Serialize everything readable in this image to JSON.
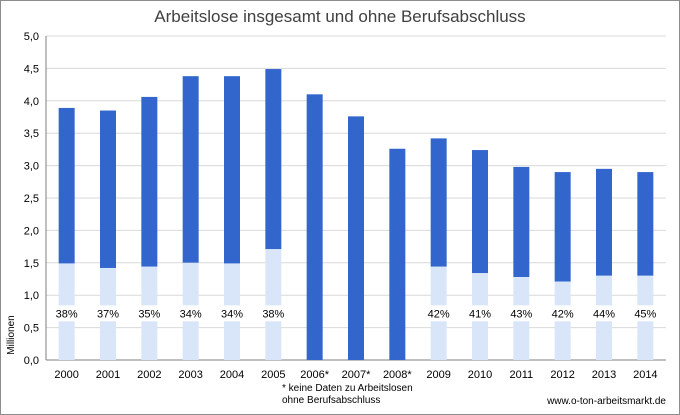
{
  "chart_data": {
    "type": "bar",
    "title": "Arbeitslose insgesamt und ohne Berufsabschluss",
    "ylabel": "Millionen",
    "xlabel": "",
    "ylim": [
      0,
      5
    ],
    "yticks": [
      "0,0",
      "0,5",
      "1,0",
      "1,5",
      "2,0",
      "2,5",
      "3,0",
      "3,5",
      "4,0",
      "4,5",
      "5,0"
    ],
    "categories": [
      "2000",
      "2001",
      "2002",
      "2003",
      "2004",
      "2005",
      "2006*",
      "2007*",
      "2008*",
      "2009",
      "2010",
      "2011",
      "2012",
      "2013",
      "2014"
    ],
    "series": [
      {
        "values": [
          1.49,
          1.42,
          1.44,
          1.5,
          1.49,
          1.71,
          null,
          null,
          null,
          1.44,
          1.34,
          1.28,
          1.21,
          1.3,
          1.3
        ]
      },
      {
        "values": [
          3.89,
          3.85,
          4.06,
          4.38,
          4.38,
          4.49,
          4.1,
          3.76,
          3.26,
          3.42,
          3.24,
          2.98,
          2.9,
          2.95,
          2.9
        ]
      }
    ],
    "data_labels": [
      "38%",
      "37%",
      "35%",
      "34%",
      "34%",
      "38%",
      "",
      "",
      "",
      "42%",
      "41%",
      "43%",
      "42%",
      "44%",
      "45%"
    ],
    "grid": true,
    "legend": "none",
    "colors": {
      "total": "#3366cc",
      "without_qualification": "#d9e6fa",
      "grid": "#d9d9d9",
      "axis": "#7f7f7f"
    }
  },
  "footnote": [
    "* keine Daten zu Arbeitslosen",
    "ohne Berufsabschluss"
  ],
  "source": "www.o-ton-arbeitsmarkt.de"
}
